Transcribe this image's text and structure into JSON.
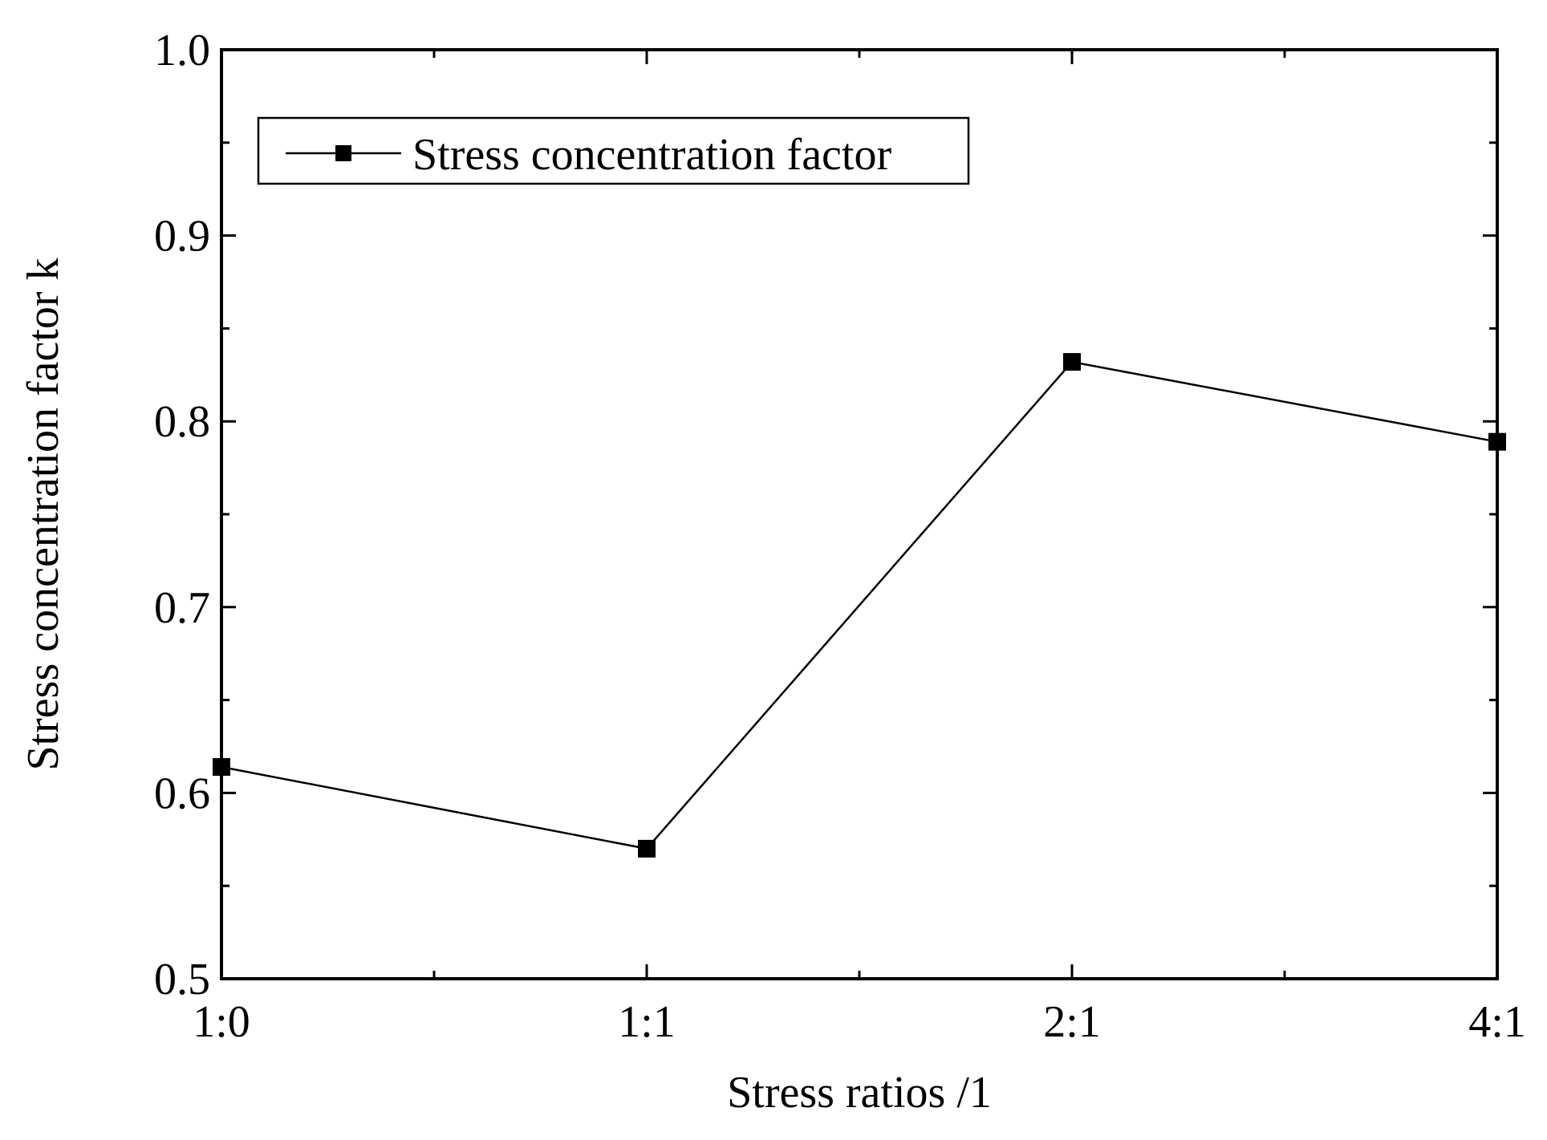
{
  "chart_data": {
    "type": "line",
    "title": "",
    "xlabel": "Stress ratios /1",
    "ylabel": "Stress concentration factor k",
    "categories": [
      "1:0",
      "1:1",
      "2:1",
      "4:1"
    ],
    "series": [
      {
        "name": "Stress concentration factor",
        "marker": "square",
        "values": [
          0.614,
          0.57,
          0.832,
          0.789
        ]
      }
    ],
    "ylim": [
      0.5,
      1.0
    ],
    "yticks": [
      "0.5",
      "0.6",
      "0.7",
      "0.8",
      "0.9",
      "1.0"
    ],
    "grid": false,
    "legend_position": "top-left",
    "colors": {
      "line": "#000000",
      "marker": "#000000",
      "axis": "#000000",
      "background": "#ffffff"
    }
  }
}
